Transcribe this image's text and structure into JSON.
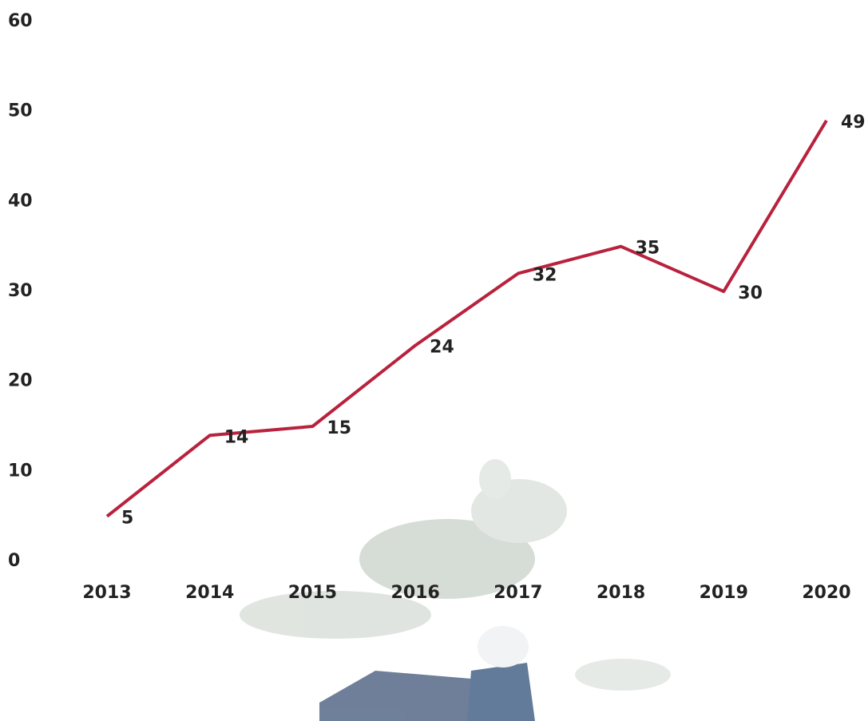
{
  "chart_data": {
    "type": "line",
    "categories": [
      "2013",
      "2014",
      "2015",
      "2016",
      "2017",
      "2018",
      "2019",
      "2020"
    ],
    "series": [
      {
        "color": "#b8223d",
        "values": [
          5,
          14,
          15,
          24,
          32,
          35,
          30,
          49
        ]
      }
    ],
    "ylim": [
      0,
      60
    ],
    "yticks": [
      0,
      10,
      20,
      30,
      40,
      50,
      60
    ],
    "grid": false
  }
}
